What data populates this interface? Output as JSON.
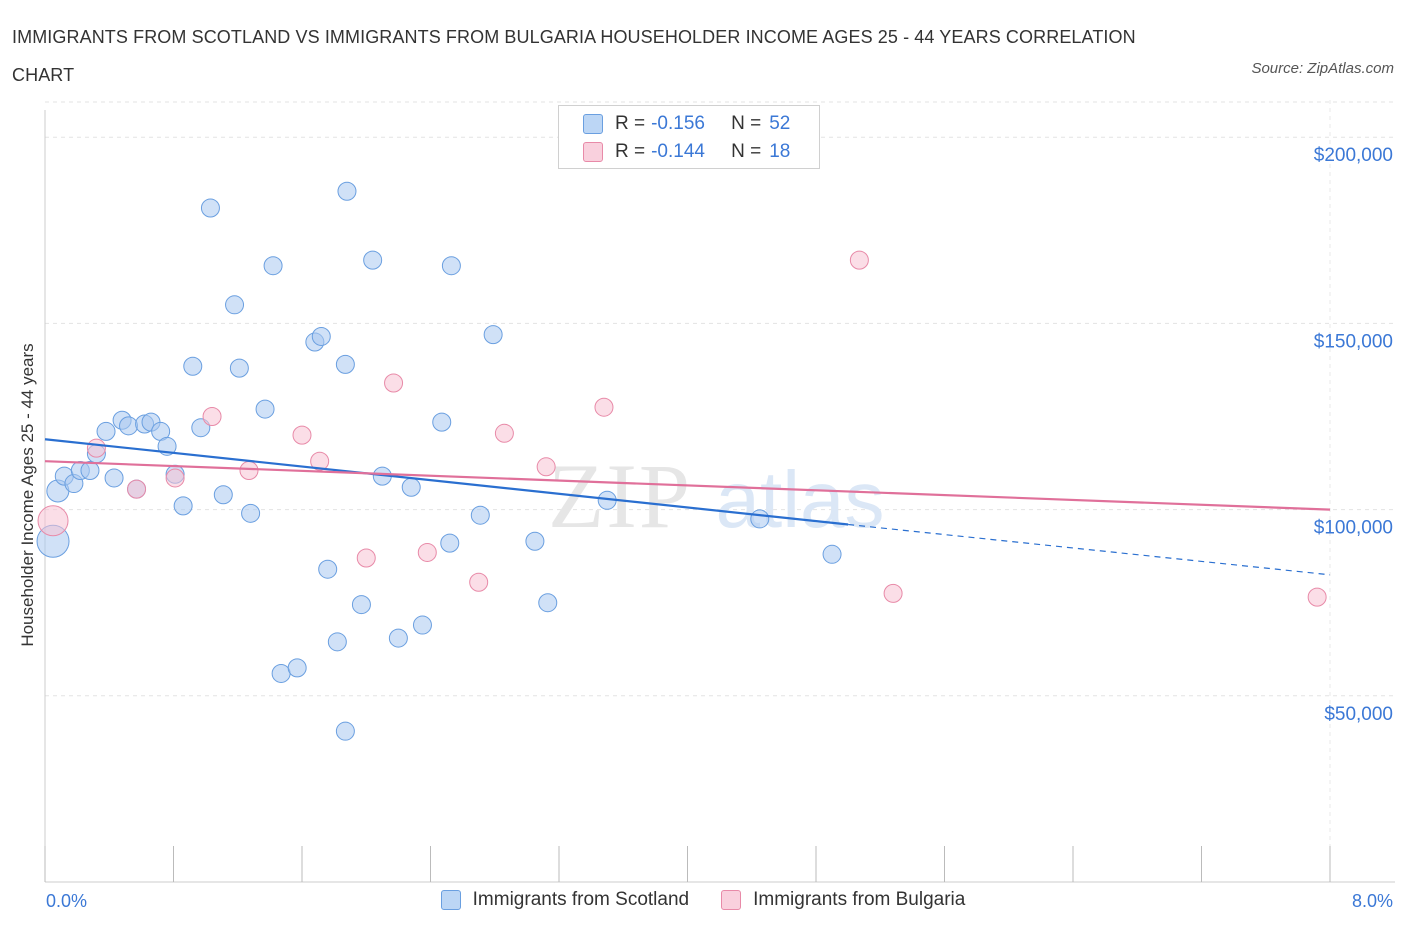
{
  "title": "IMMIGRANTS FROM SCOTLAND VS IMMIGRANTS FROM BULGARIA HOUSEHOLDER INCOME AGES 25 - 44 YEARS CORRELATION CHART",
  "source": "Source: ZipAtlas.com",
  "watermark": {
    "zip": "ZIP",
    "atlas": "atlas"
  },
  "legend": {
    "r_label": "R =",
    "n_label": "N =",
    "rows": [
      {
        "r": "-0.156",
        "n": "52",
        "color": "#a9c8f0",
        "border": "#6a9fe0"
      },
      {
        "r": "-0.144",
        "n": "18",
        "color": "#f7c3d3",
        "border": "#e88aa8"
      }
    ]
  },
  "chart_data": {
    "type": "scatter",
    "title": "IMMIGRANTS FROM SCOTLAND VS IMMIGRANTS FROM BULGARIA HOUSEHOLDER INCOME AGES 25 - 44 YEARS CORRELATION CHART",
    "xlabel": "",
    "ylabel": "Householder Income Ages 25 - 44 years",
    "xlim": [
      0,
      8
    ],
    "ylim": [
      0,
      210000
    ],
    "x_tick_labels": [
      "0.0%",
      "8.0%"
    ],
    "y_ticks": [
      50000,
      100000,
      150000,
      200000
    ],
    "y_tick_labels": [
      "$50,000",
      "$100,000",
      "$150,000",
      "$200,000"
    ],
    "grid": true,
    "legend_position": "top-center",
    "series": [
      {
        "name": "Immigrants from Scotland",
        "color": "#a9c8f0",
        "stroke": "#6a9fe0",
        "trend_color": "#2a6fd0",
        "trend": {
          "x0": 0.0,
          "y0": 118900,
          "x1": 5.0,
          "y1": 96000,
          "dash_to_x": 8.0,
          "dash_to_y": 82500
        },
        "points": [
          [
            0.05,
            91500,
            16
          ],
          [
            0.08,
            105000,
            11
          ],
          [
            0.12,
            109000,
            9
          ],
          [
            0.18,
            107000,
            9
          ],
          [
            0.22,
            110500,
            9
          ],
          [
            0.28,
            110500,
            9
          ],
          [
            0.32,
            115000,
            9
          ],
          [
            0.38,
            121000,
            9
          ],
          [
            0.43,
            108500,
            9
          ],
          [
            0.48,
            124000,
            9
          ],
          [
            0.52,
            122500,
            9
          ],
          [
            0.57,
            105500,
            9
          ],
          [
            0.62,
            123000,
            9
          ],
          [
            0.66,
            123500,
            9
          ],
          [
            0.72,
            121000,
            9
          ],
          [
            0.76,
            117000,
            9
          ],
          [
            0.81,
            109500,
            9
          ],
          [
            0.86,
            101000,
            9
          ],
          [
            0.92,
            138500,
            9
          ],
          [
            0.97,
            122000,
            9
          ],
          [
            1.03,
            181000,
            9
          ],
          [
            1.11,
            104000,
            9
          ],
          [
            1.18,
            155000,
            9
          ],
          [
            1.21,
            138000,
            9
          ],
          [
            1.28,
            99000,
            9
          ],
          [
            1.37,
            127000,
            9
          ],
          [
            1.42,
            165500,
            9
          ],
          [
            1.47,
            56000,
            9
          ],
          [
            1.57,
            57500,
            9
          ],
          [
            1.68,
            145000,
            9
          ],
          [
            1.72,
            146500,
            9
          ],
          [
            1.76,
            84000,
            9
          ],
          [
            1.82,
            64500,
            9
          ],
          [
            1.87,
            40500,
            9
          ],
          [
            1.87,
            139000,
            9
          ],
          [
            1.97,
            74500,
            9
          ],
          [
            2.04,
            167000,
            9
          ],
          [
            2.1,
            109000,
            9
          ],
          [
            2.2,
            65500,
            9
          ],
          [
            2.28,
            106000,
            9
          ],
          [
            2.35,
            69000,
            9
          ],
          [
            2.47,
            123500,
            9
          ],
          [
            2.52,
            91000,
            9
          ],
          [
            2.53,
            165500,
            9
          ],
          [
            2.71,
            98500,
            9
          ],
          [
            2.79,
            147000,
            9
          ],
          [
            3.05,
            91500,
            9
          ],
          [
            3.13,
            75000,
            9
          ],
          [
            3.5,
            102500,
            9
          ],
          [
            4.45,
            97500,
            9
          ],
          [
            4.9,
            88000,
            9
          ],
          [
            1.88,
            185500,
            9
          ]
        ]
      },
      {
        "name": "Immigrants from Bulgaria",
        "color": "#f7c3d3",
        "stroke": "#e88aa8",
        "trend_color": "#e0709a",
        "trend": {
          "x0": 0.0,
          "y0": 113000,
          "x1": 8.0,
          "y1": 100000
        },
        "points": [
          [
            0.05,
            97000,
            15
          ],
          [
            0.32,
            116500,
            9
          ],
          [
            0.57,
            105500,
            9
          ],
          [
            0.81,
            108500,
            9
          ],
          [
            1.04,
            125000,
            9
          ],
          [
            1.27,
            110500,
            9
          ],
          [
            1.6,
            120000,
            9
          ],
          [
            1.71,
            113000,
            9
          ],
          [
            2.0,
            87000,
            9
          ],
          [
            2.17,
            134000,
            9
          ],
          [
            2.38,
            88500,
            9
          ],
          [
            2.7,
            80500,
            9
          ],
          [
            2.86,
            120500,
            9
          ],
          [
            3.12,
            111500,
            9
          ],
          [
            3.48,
            127500,
            9
          ],
          [
            5.07,
            167000,
            9
          ],
          [
            5.28,
            77500,
            9
          ],
          [
            7.92,
            76500,
            9
          ]
        ]
      }
    ]
  }
}
